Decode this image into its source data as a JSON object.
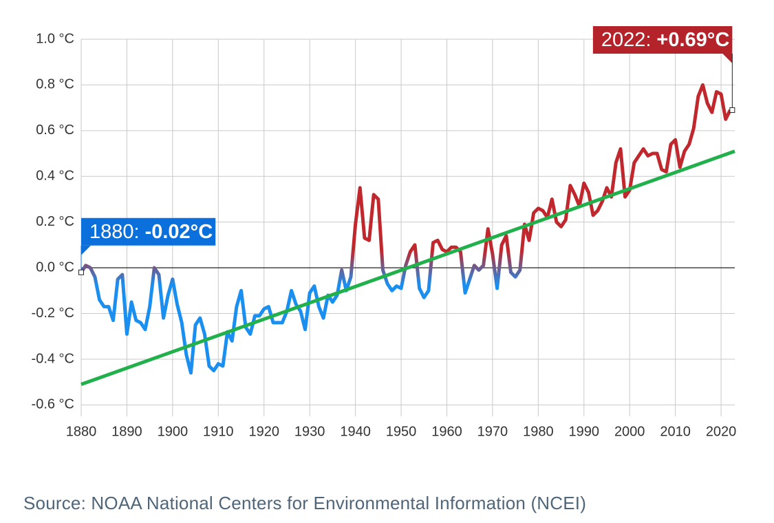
{
  "chart_data": {
    "type": "line",
    "x": [
      1880,
      1881,
      1882,
      1883,
      1884,
      1885,
      1886,
      1887,
      1888,
      1889,
      1890,
      1891,
      1892,
      1893,
      1894,
      1895,
      1896,
      1897,
      1898,
      1899,
      1900,
      1901,
      1902,
      1903,
      1904,
      1905,
      1906,
      1907,
      1908,
      1909,
      1910,
      1911,
      1912,
      1913,
      1914,
      1915,
      1916,
      1917,
      1918,
      1919,
      1920,
      1921,
      1922,
      1923,
      1924,
      1925,
      1926,
      1927,
      1928,
      1929,
      1930,
      1931,
      1932,
      1933,
      1934,
      1935,
      1936,
      1937,
      1938,
      1939,
      1940,
      1941,
      1942,
      1943,
      1944,
      1945,
      1946,
      1947,
      1948,
      1949,
      1950,
      1951,
      1952,
      1953,
      1954,
      1955,
      1956,
      1957,
      1958,
      1959,
      1960,
      1961,
      1962,
      1963,
      1964,
      1965,
      1966,
      1967,
      1968,
      1969,
      1970,
      1971,
      1972,
      1973,
      1974,
      1975,
      1976,
      1977,
      1978,
      1979,
      1980,
      1981,
      1982,
      1983,
      1984,
      1985,
      1986,
      1987,
      1988,
      1989,
      1990,
      1991,
      1992,
      1993,
      1994,
      1995,
      1996,
      1997,
      1998,
      1999,
      2000,
      2001,
      2002,
      2003,
      2004,
      2005,
      2006,
      2007,
      2008,
      2009,
      2010,
      2011,
      2012,
      2013,
      2014,
      2015,
      2016,
      2017,
      2018,
      2019,
      2020,
      2021,
      2022
    ],
    "values": [
      -0.02,
      0.01,
      0.0,
      -0.04,
      -0.14,
      -0.17,
      -0.17,
      -0.23,
      -0.05,
      -0.03,
      -0.29,
      -0.15,
      -0.23,
      -0.24,
      -0.27,
      -0.17,
      0.0,
      -0.03,
      -0.22,
      -0.12,
      -0.05,
      -0.16,
      -0.24,
      -0.38,
      -0.46,
      -0.25,
      -0.22,
      -0.29,
      -0.43,
      -0.45,
      -0.42,
      -0.43,
      -0.28,
      -0.32,
      -0.17,
      -0.1,
      -0.26,
      -0.29,
      -0.21,
      -0.21,
      -0.18,
      -0.17,
      -0.24,
      -0.24,
      -0.24,
      -0.19,
      -0.1,
      -0.16,
      -0.19,
      -0.27,
      -0.11,
      -0.08,
      -0.17,
      -0.22,
      -0.12,
      -0.15,
      -0.12,
      -0.01,
      -0.1,
      -0.04,
      0.19,
      0.35,
      0.13,
      0.12,
      0.32,
      0.3,
      -0.01,
      -0.07,
      -0.1,
      -0.08,
      -0.09,
      0.01,
      0.07,
      0.1,
      -0.09,
      -0.13,
      -0.1,
      0.11,
      0.12,
      0.08,
      0.07,
      0.09,
      0.09,
      0.07,
      -0.11,
      -0.05,
      0.01,
      -0.01,
      0.01,
      0.17,
      0.06,
      -0.09,
      0.1,
      0.14,
      -0.02,
      -0.04,
      -0.01,
      0.19,
      0.12,
      0.24,
      0.26,
      0.25,
      0.22,
      0.3,
      0.2,
      0.18,
      0.21,
      0.36,
      0.32,
      0.27,
      0.37,
      0.33,
      0.23,
      0.25,
      0.29,
      0.35,
      0.31,
      0.46,
      0.52,
      0.31,
      0.34,
      0.46,
      0.49,
      0.52,
      0.49,
      0.5,
      0.5,
      0.43,
      0.42,
      0.54,
      0.56,
      0.44,
      0.51,
      0.54,
      0.61,
      0.75,
      0.8,
      0.72,
      0.68,
      0.77,
      0.76,
      0.65,
      0.69
    ],
    "color_above": "#c0282d",
    "color_below": "#1a8ff0",
    "trend": {
      "x": [
        1880,
        2023
      ],
      "values": [
        -0.51,
        0.51
      ],
      "color": "#21b04b"
    },
    "xlim": [
      1880,
      2023
    ],
    "ylim": [
      -0.65,
      1.0
    ],
    "xticks": [
      1880,
      1890,
      1900,
      1910,
      1920,
      1930,
      1940,
      1950,
      1960,
      1970,
      1980,
      1990,
      2000,
      2010,
      2020
    ],
    "yticks": [
      {
        "value": -0.6,
        "label": "-0.6 °C"
      },
      {
        "value": -0.4,
        "label": "-0.4 °C"
      },
      {
        "value": -0.2,
        "label": "-0.2 °C"
      },
      {
        "value": 0,
        "label": "0.0 °C"
      },
      {
        "value": 0.2,
        "label": "0.2 °C"
      },
      {
        "value": 0.4,
        "label": "0.4 °C"
      },
      {
        "value": 0.6,
        "label": "0.6 °C"
      },
      {
        "value": 0.8,
        "label": "0.8 °C"
      },
      {
        "value": 1.0,
        "label": "1.0 °C"
      }
    ],
    "grid": true,
    "zero_line": true,
    "annotations": [
      {
        "x": 1880,
        "value": -0.02,
        "year_label": "1880:",
        "label": "-0.02°C",
        "color": "#0b6fdc",
        "side": "left"
      },
      {
        "x": 2022,
        "value": 0.69,
        "year_label": "2022:",
        "label": "+0.69°C",
        "color": "#b5232a",
        "side": "right"
      }
    ],
    "source": "Source: NOAA National Centers for Environmental Information (NCEI)"
  }
}
